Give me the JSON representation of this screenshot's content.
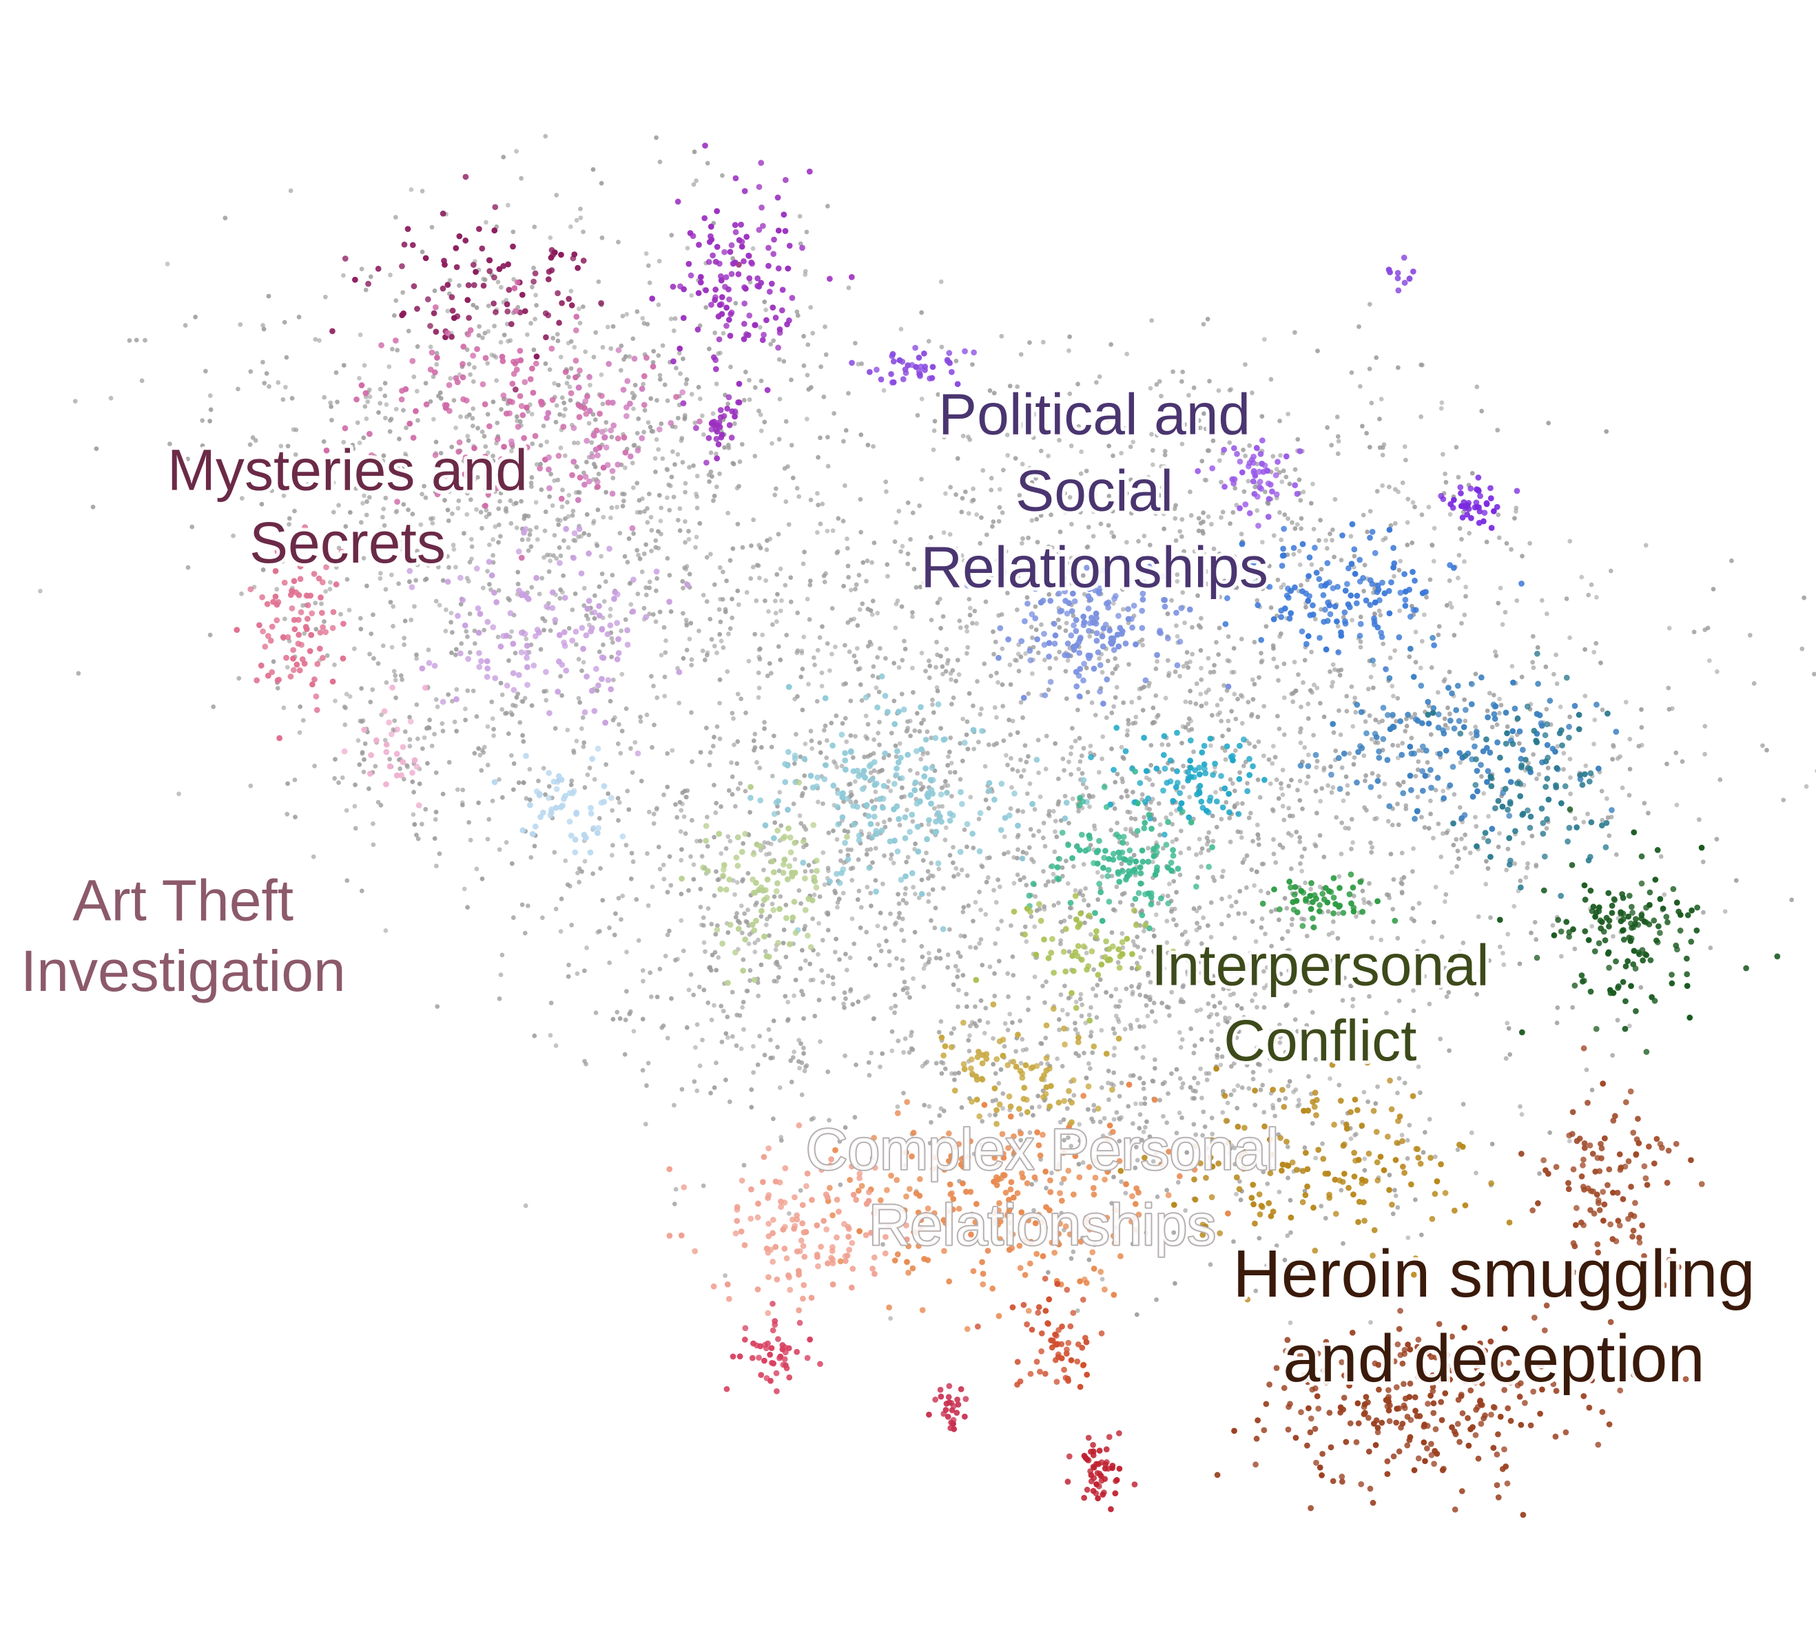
{
  "labels": [
    {
      "lines": [
        "Mysteries and",
        "Secrets"
      ],
      "color": "#6b2a47"
    },
    {
      "lines": [
        "Political and",
        "Social",
        "Relationships"
      ],
      "color": "#4a3570"
    },
    {
      "lines": [
        "Art Theft",
        "Investigation"
      ],
      "color": "#8c5a6a"
    },
    {
      "lines": [
        "Interpersonal",
        "Conflict"
      ],
      "color": "#3d4a1a"
    },
    {
      "lines": [
        "Complex Personal",
        "Relationships"
      ],
      "color": "#ffffff"
    },
    {
      "lines": [
        "Heroin smuggling",
        "and deception"
      ],
      "color": "#3a1a0a"
    }
  ]
}
